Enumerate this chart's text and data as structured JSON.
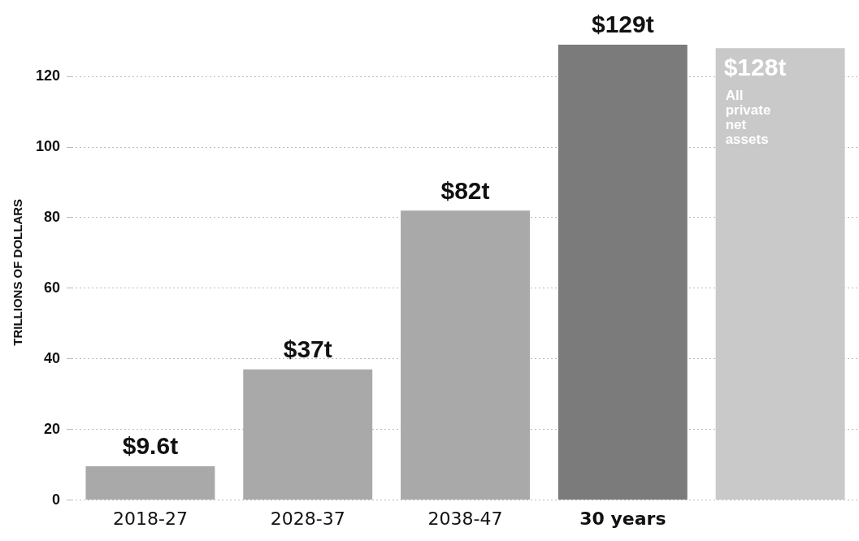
{
  "chart_data": {
    "type": "bar",
    "ylabel": "TRILLIONS OF DOLLARS",
    "categories": [
      "2018-27",
      "2028-37",
      "2038-47",
      "30 years",
      null
    ],
    "values": [
      9.6,
      37,
      82,
      129,
      128
    ],
    "colors": [
      "#a9a9a9",
      "#a9a9a9",
      "#a9a9a9",
      "#7b7b7b",
      "#c9c9c9"
    ],
    "value_labels": [
      "$9.6t",
      "$37t",
      "$82t",
      "$129t",
      "$128t"
    ],
    "annotations": [
      "All private net assets"
    ],
    "ylim": [
      0,
      129
    ],
    "yticks": [
      0,
      20,
      40,
      60,
      80,
      100,
      120
    ],
    "grid": "y",
    "legend": false
  }
}
